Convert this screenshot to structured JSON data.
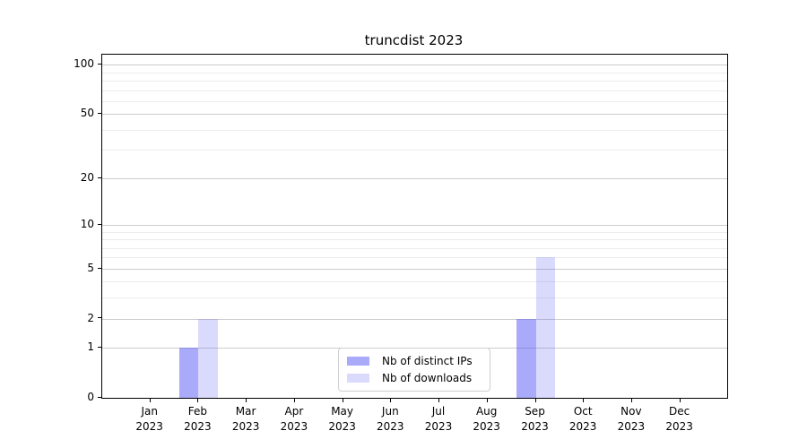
{
  "chart_data": {
    "type": "bar",
    "title": "truncdist 2023",
    "categories": [
      "Jan\n2023",
      "Feb\n2023",
      "Mar\n2023",
      "Apr\n2023",
      "May\n2023",
      "Jun\n2023",
      "Jul\n2023",
      "Aug\n2023",
      "Sep\n2023",
      "Oct\n2023",
      "Nov\n2023",
      "Dec\n2023"
    ],
    "series": [
      {
        "name": "Nb of distinct IPs",
        "fill": "rgba(85,85,245,0.50)",
        "solid_hex": "#aaaaf8",
        "values": [
          0,
          1,
          0,
          0,
          0,
          0,
          0,
          0,
          2,
          0,
          0,
          0
        ]
      },
      {
        "name": "Nb of downloads",
        "fill": "rgba(85,85,245,0.22)",
        "solid_hex": "#d9d9fa",
        "values": [
          0,
          2,
          0,
          0,
          0,
          0,
          0,
          0,
          6,
          0,
          0,
          0
        ]
      }
    ],
    "xlabel": "",
    "ylabel": "",
    "yscale": "log1p",
    "ylim": [
      0,
      115
    ],
    "yticks": [
      0,
      1,
      2,
      5,
      10,
      20,
      50,
      100
    ],
    "minor_yticks": [
      3,
      4,
      6,
      7,
      8,
      9,
      30,
      40,
      60,
      70,
      80,
      90
    ],
    "grid": true,
    "legend_position": "lower center"
  },
  "colors": {
    "axis": "#000000",
    "grid_major": "#cccccc",
    "grid_minor": "#ececec",
    "background": "#ffffff",
    "legend_border": "#cfcfcf"
  }
}
